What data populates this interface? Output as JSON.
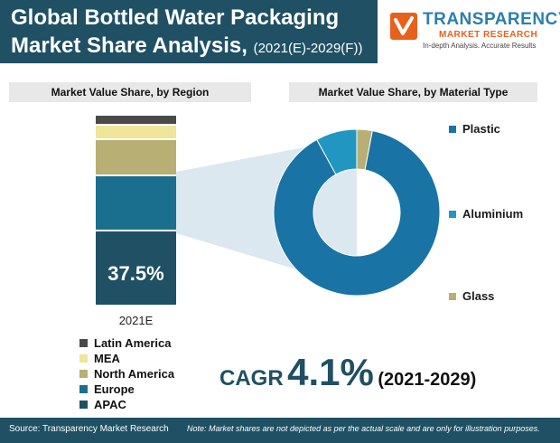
{
  "header": {
    "title_line1": "Global Bottled Water Packaging",
    "title_line2": "Market Share Analysis,",
    "title_period": "(2021(E)-2029(F))"
  },
  "logo": {
    "name": "TRANSPARENCY",
    "sub": "MARKET RESEARCH",
    "tagline": "In-depth Analysis. Accurate Results"
  },
  "colors": {
    "header_bg": "#1f5064",
    "apac": "#1f5064",
    "europe": "#1b6f8e",
    "north_america": "#b7af73",
    "mea": "#efe59b",
    "latin_america": "#4a4a4a",
    "plastic": "#1a73a5",
    "aluminium": "#2096c0",
    "glass": "#b7af73"
  },
  "chart_data": [
    {
      "type": "bar",
      "title": "Market Value Share, by Region",
      "categories": [
        "2021E"
      ],
      "stacked": true,
      "highlight_label": "37.5%",
      "series": [
        {
          "name": "APAC",
          "values": [
            37.5
          ],
          "color_key": "apac"
        },
        {
          "name": "Europe",
          "values": [
            27.5
          ],
          "color_key": "europe"
        },
        {
          "name": "North America",
          "values": [
            18
          ],
          "color_key": "north_america"
        },
        {
          "name": "MEA",
          "values": [
            7
          ],
          "color_key": "mea"
        },
        {
          "name": "Latin America",
          "values": [
            5
          ],
          "color_key": "latin_america"
        }
      ],
      "legend_order": [
        "Latin America",
        "MEA",
        "North America",
        "Europe",
        "APAC"
      ],
      "ylim": [
        0,
        100
      ]
    },
    {
      "type": "pie",
      "donut": true,
      "title": "Market Value Share, by Material Type",
      "slices": [
        {
          "name": "Plastic",
          "value": 89,
          "color_key": "plastic"
        },
        {
          "name": "Aluminium",
          "value": 8,
          "color_key": "aluminium"
        },
        {
          "name": "Glass",
          "value": 3,
          "color_key": "glass"
        }
      ]
    }
  ],
  "cagr": {
    "label": "CAGR",
    "value": "4.1%",
    "period": "(2021-2029)"
  },
  "footer": {
    "source": "Source: Transparency Market Research",
    "note": "Note: Market shares are not depicted as per the actual scale and are only for illustration purposes."
  }
}
